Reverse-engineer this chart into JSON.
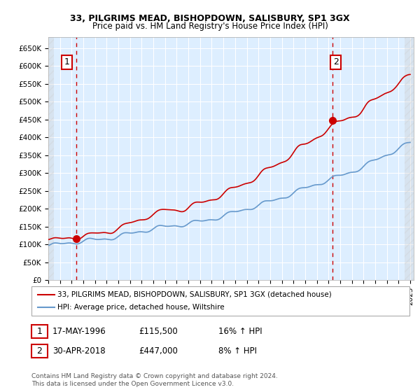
{
  "title1": "33, PILGRIMS MEAD, BISHOPDOWN, SALISBURY, SP1 3GX",
  "title2": "Price paid vs. HM Land Registry's House Price Index (HPI)",
  "legend_line1": "33, PILGRIMS MEAD, BISHOPDOWN, SALISBURY, SP1 3GX (detached house)",
  "legend_line2": "HPI: Average price, detached house, Wiltshire",
  "annotation1_label": "1",
  "annotation1_date": "17-MAY-1996",
  "annotation1_price": "£115,500",
  "annotation1_hpi": "16% ↑ HPI",
  "annotation2_label": "2",
  "annotation2_date": "30-APR-2018",
  "annotation2_price": "£447,000",
  "annotation2_hpi": "8% ↑ HPI",
  "footer": "Contains HM Land Registry data © Crown copyright and database right 2024.\nThis data is licensed under the Open Government Licence v3.0.",
  "ylim": [
    0,
    680000
  ],
  "yticks": [
    0,
    50000,
    100000,
    150000,
    200000,
    250000,
    300000,
    350000,
    400000,
    450000,
    500000,
    550000,
    600000,
    650000
  ],
  "sale1_year": 1996.38,
  "sale1_price": 115500,
  "sale2_year": 2018.33,
  "sale2_price": 447000,
  "hpi_color": "#6699cc",
  "price_color": "#cc0000",
  "background_plot": "#ddeeff",
  "background_hatch": "#e8e8e8",
  "grid_color": "#ffffff",
  "vline_color": "#cc0000"
}
